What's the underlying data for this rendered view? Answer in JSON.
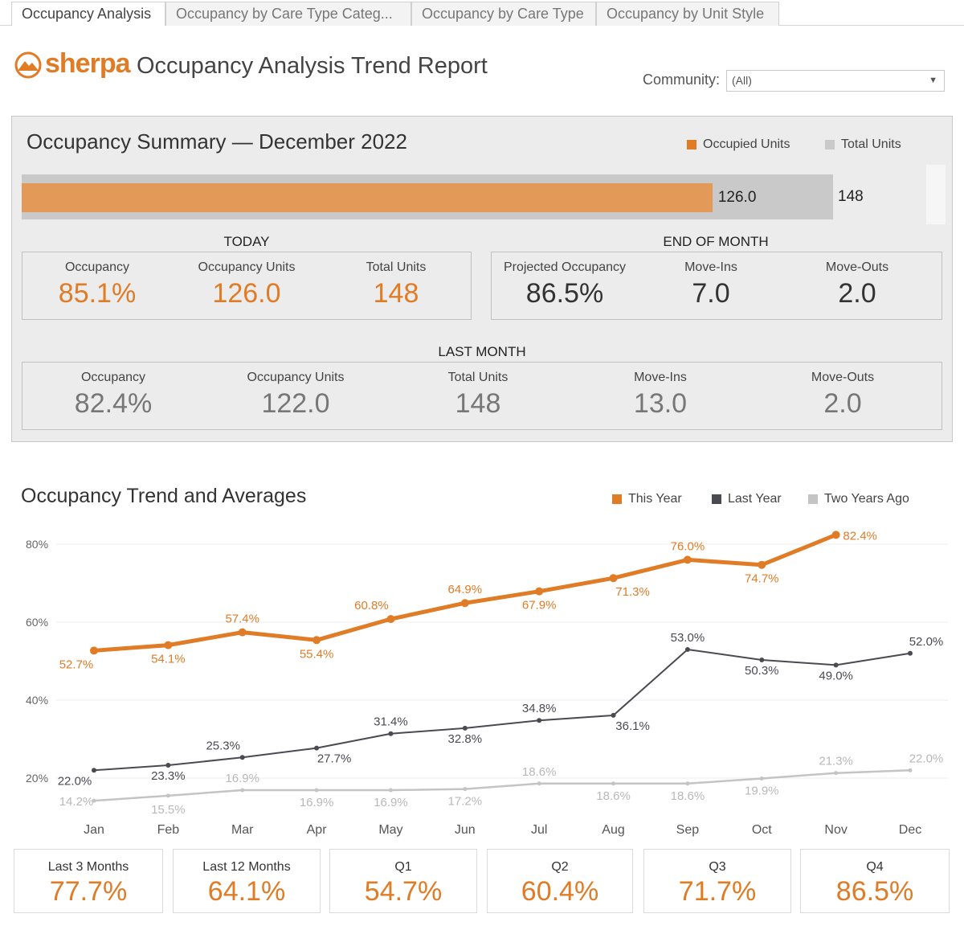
{
  "tabs": [
    "Occupancy Analysis",
    "Occupancy by Care Type Categ...",
    "Occupancy by Care Type",
    "Occupancy by Unit Style"
  ],
  "header": {
    "brand": "sherpa",
    "title": "Occupancy Analysis Trend Report",
    "community_label": "Community:",
    "community_value": "(All)"
  },
  "summary": {
    "title": "Occupancy Summary — December 2022",
    "legend_occupied": "Occupied Units",
    "legend_total": "Total Units",
    "occupied_units": 126.0,
    "occupied_label": "126.0",
    "total_units": 148,
    "total_label": "148",
    "today": {
      "label": "TODAY",
      "occupancy_lbl": "Occupancy",
      "occupancy_val": "85.1%",
      "units_lbl": "Occupancy Units",
      "units_val": "126.0",
      "total_lbl": "Total Units",
      "total_val": "148"
    },
    "end_of_month": {
      "label": "END OF MONTH",
      "proj_lbl": "Projected Occupancy",
      "proj_val": "86.5%",
      "movein_lbl": "Move-Ins",
      "movein_val": "7.0",
      "moveout_lbl": "Move-Outs",
      "moveout_val": "2.0"
    },
    "last_month": {
      "label": "LAST MONTH",
      "occupancy_lbl": "Occupancy",
      "occupancy_val": "82.4%",
      "units_lbl": "Occupancy Units",
      "units_val": "122.0",
      "total_lbl": "Total Units",
      "total_val": "148",
      "movein_lbl": "Move-Ins",
      "movein_val": "13.0",
      "moveout_lbl": "Move-Outs",
      "moveout_val": "2.0"
    }
  },
  "colors": {
    "accent": "#e07b26",
    "bar_occupied": "#e39a58",
    "bar_total": "#c9c9c9",
    "last_year": "#4a4a52",
    "two_years": "#c4c4c4"
  },
  "trend": {
    "title": "Occupancy Trend and Averages",
    "chart_data": {
      "type": "line",
      "x": [
        "Jan",
        "Feb",
        "Mar",
        "Apr",
        "May",
        "Jun",
        "Jul",
        "Aug",
        "Sep",
        "Oct",
        "Nov",
        "Dec"
      ],
      "ylim": [
        10,
        90
      ],
      "yticks": [
        "20%",
        "40%",
        "60%",
        "80%"
      ],
      "ytick_values": [
        20,
        40,
        60,
        80
      ],
      "series": [
        {
          "name": "This Year",
          "color": "#e07b26",
          "values": [
            52.7,
            54.1,
            57.4,
            55.4,
            60.8,
            64.9,
            67.9,
            71.3,
            76.0,
            74.7,
            82.4,
            null
          ],
          "labels": [
            "52.7%",
            "54.1%",
            "57.4%",
            "55.4%",
            "60.8%",
            "64.9%",
            "67.9%",
            "71.3%",
            "76.0%",
            "74.7%",
            "82.4%",
            ""
          ]
        },
        {
          "name": "Last Year",
          "color": "#4a4a52",
          "values": [
            22.0,
            23.3,
            25.3,
            27.7,
            31.4,
            32.8,
            34.8,
            36.1,
            53.0,
            50.3,
            49.0,
            52.0
          ],
          "labels": [
            "22.0%",
            "23.3%",
            "25.3%",
            "27.7%",
            "31.4%",
            "32.8%",
            "34.8%",
            "36.1%",
            "53.0%",
            "50.3%",
            "49.0%",
            "52.0%"
          ]
        },
        {
          "name": "Two Years Ago",
          "color": "#c4c4c4",
          "values": [
            14.2,
            15.5,
            16.9,
            16.9,
            16.9,
            17.2,
            18.6,
            18.6,
            18.6,
            19.9,
            21.3,
            22.0
          ],
          "labels": [
            "14.2%",
            "15.5%",
            "16.9%",
            "16.9%",
            "16.9%",
            "17.2%",
            "18.6%",
            "18.6%",
            "18.6%",
            "19.9%",
            "21.3%",
            "22.0%"
          ]
        }
      ]
    }
  },
  "kpis": [
    {
      "label": "Last 3 Months",
      "value": "77.7%"
    },
    {
      "label": "Last 12 Months",
      "value": "64.1%"
    },
    {
      "label": "Q1",
      "value": "54.7%"
    },
    {
      "label": "Q2",
      "value": "60.4%"
    },
    {
      "label": "Q3",
      "value": "71.7%"
    },
    {
      "label": "Q4",
      "value": "86.5%"
    }
  ]
}
